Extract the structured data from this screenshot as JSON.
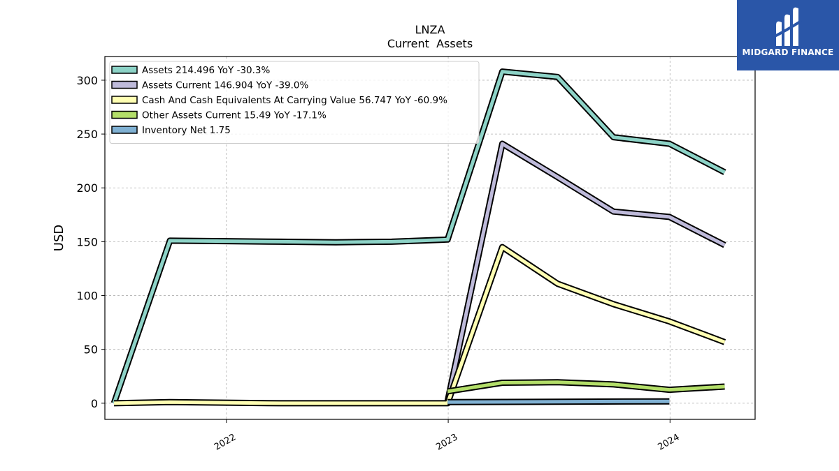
{
  "chart_data": {
    "type": "line",
    "title": "LNZA",
    "subtitle": "Current  Assets",
    "ylabel": "USD",
    "xlabel": "",
    "xlim": [
      "2021-06-15",
      "2024-05-20"
    ],
    "ylim": [
      -15,
      322
    ],
    "x_ticks": [
      {
        "date": "2022-01-01",
        "label": "2022"
      },
      {
        "date": "2023-01-01",
        "label": "2023"
      },
      {
        "date": "2024-01-01",
        "label": "2024"
      }
    ],
    "y_ticks": [
      0,
      50,
      100,
      150,
      200,
      250,
      300
    ],
    "grid": true,
    "legend_position": "top-left",
    "series": [
      {
        "name": "Assets",
        "legend_label": "Assets  214.496 YoY -30.3%",
        "color": "#8dd3c7",
        "points": [
          [
            "2021-06-30",
            0
          ],
          [
            "2021-09-30",
            151
          ],
          [
            "2021-12-31",
            150.5
          ],
          [
            "2022-03-31",
            150
          ],
          [
            "2022-06-30",
            149.5
          ],
          [
            "2022-09-30",
            150
          ],
          [
            "2022-12-31",
            152
          ],
          [
            "2023-03-31",
            308
          ],
          [
            "2023-06-30",
            303
          ],
          [
            "2023-09-30",
            247
          ],
          [
            "2023-12-31",
            241
          ],
          [
            "2024-03-31",
            214.496
          ]
        ]
      },
      {
        "name": "Assets Current",
        "legend_label": "Assets Current  146.904 YoY -39.0%",
        "color": "#bebada",
        "points": [
          [
            "2022-12-31",
            2
          ],
          [
            "2023-03-31",
            241
          ],
          [
            "2023-06-30",
            210
          ],
          [
            "2023-09-30",
            178
          ],
          [
            "2023-12-31",
            173
          ],
          [
            "2024-03-31",
            146.904
          ]
        ]
      },
      {
        "name": "Cash And Cash Equivalents At Carrying Value",
        "legend_label": "Cash And Cash Equivalents At Carrying Value  56.747 YoY -60.9%",
        "color": "#ffffb3",
        "points": [
          [
            "2021-06-30",
            0
          ],
          [
            "2021-09-30",
            1
          ],
          [
            "2021-12-31",
            0.5
          ],
          [
            "2022-03-31",
            0
          ],
          [
            "2022-06-30",
            0
          ],
          [
            "2022-09-30",
            0
          ],
          [
            "2022-12-31",
            0
          ],
          [
            "2023-03-31",
            145
          ],
          [
            "2023-06-30",
            111
          ],
          [
            "2023-09-30",
            92
          ],
          [
            "2023-12-31",
            76
          ],
          [
            "2024-03-31",
            56.747
          ]
        ]
      },
      {
        "name": "Other Assets Current",
        "legend_label": "Other Assets Current  15.49 YoY -17.1%",
        "color": "#b3de69",
        "points": [
          [
            "2022-12-31",
            11
          ],
          [
            "2023-03-31",
            19
          ],
          [
            "2023-06-30",
            19.5
          ],
          [
            "2023-09-30",
            17.5
          ],
          [
            "2023-12-31",
            12.5
          ],
          [
            "2024-03-31",
            15.49
          ]
        ]
      },
      {
        "name": "Inventory Net",
        "legend_label": "Inventory Net  1.75",
        "color": "#80b1d3",
        "points": [
          [
            "2022-12-31",
            1
          ],
          [
            "2023-12-31",
            1.75
          ]
        ]
      }
    ]
  },
  "logo": {
    "text": "MIDGARD FINANCE",
    "background": "#2a56a8"
  }
}
